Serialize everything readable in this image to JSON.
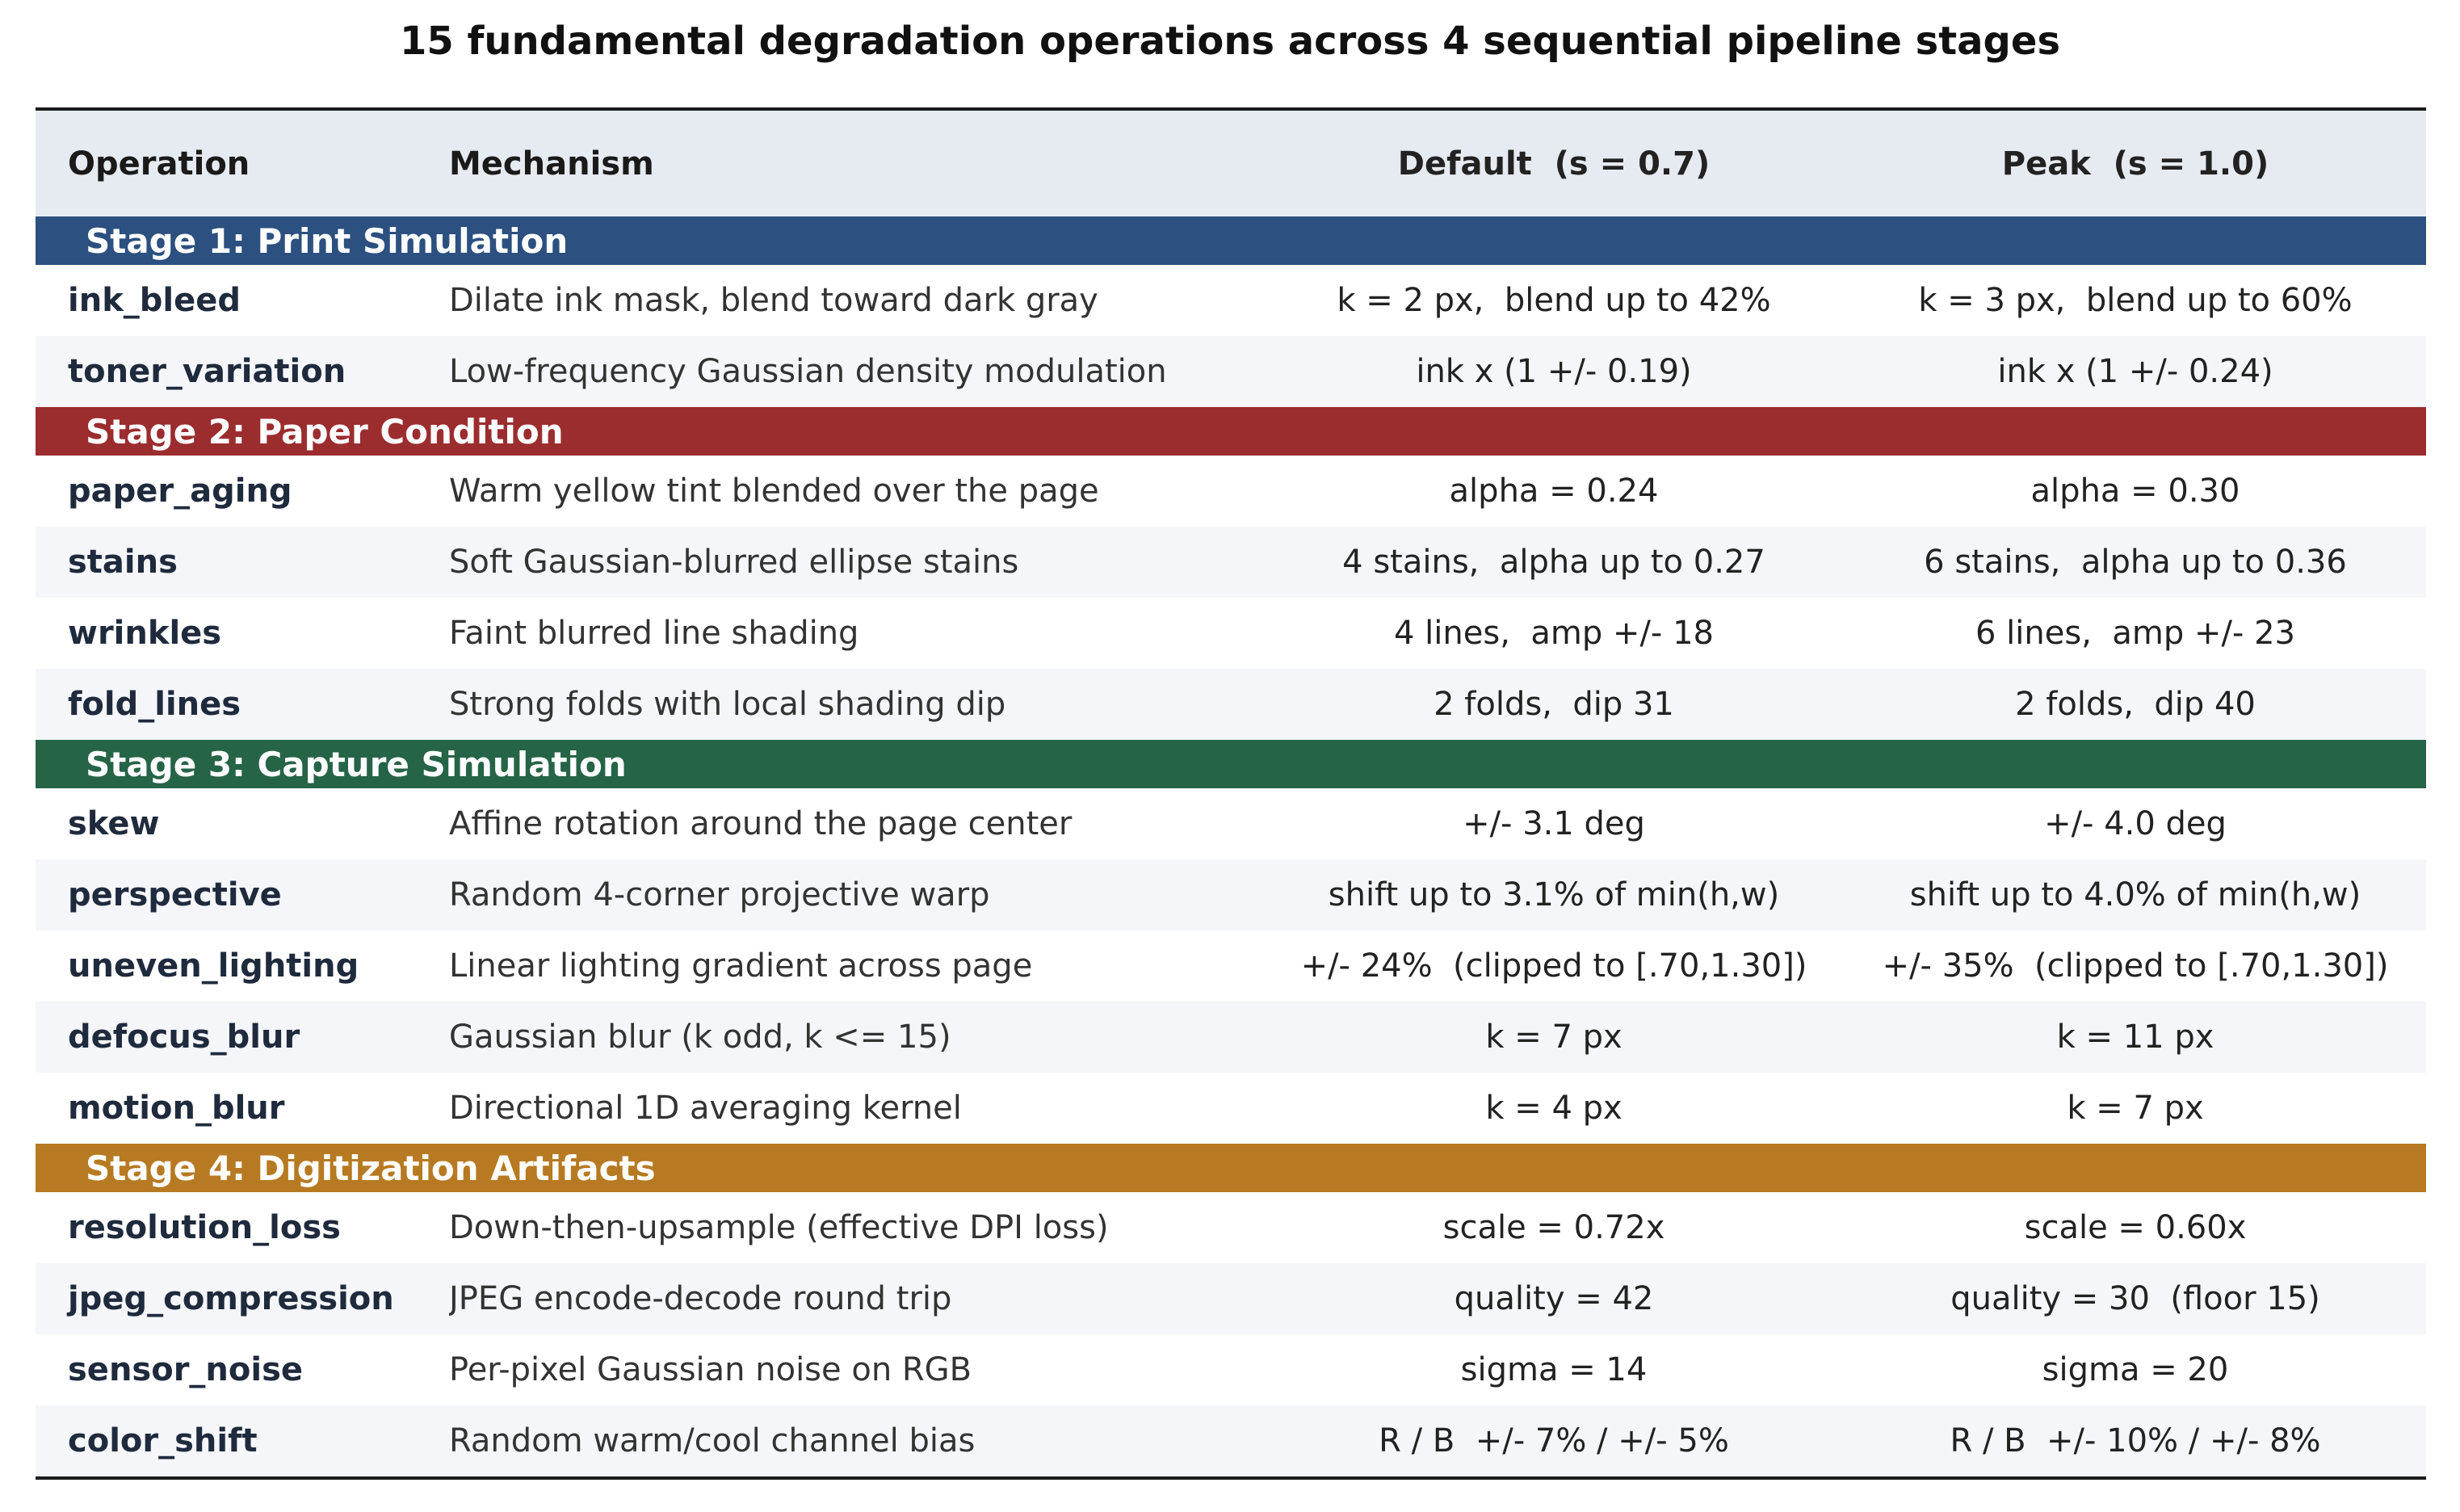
{
  "title": "15 fundamental degradation operations across 4 sequential pipeline stages",
  "columns": {
    "operation": "Operation",
    "mechanism": "Mechanism",
    "default": "Default  (s = 0.7)",
    "peak": "Peak  (s = 1.0)"
  },
  "colors": {
    "stage1": "#2c5080",
    "stage2": "#9b2d2f",
    "stage3": "#266447",
    "stage4": "#b77a22",
    "header_bg": "#e6ebf1"
  },
  "stages": [
    {
      "label": "Stage 1: Print Simulation",
      "rows": [
        {
          "op": "ink_bleed",
          "mech": "Dilate ink mask, blend toward dark gray",
          "def": "k = 2 px,  blend up to 42%",
          "peak": "k = 3 px,  blend up to 60%"
        },
        {
          "op": "toner_variation",
          "mech": "Low-frequency Gaussian density modulation",
          "def": "ink x (1 +/- 0.19)",
          "peak": "ink x (1 +/- 0.24)"
        }
      ]
    },
    {
      "label": "Stage 2: Paper Condition",
      "rows": [
        {
          "op": "paper_aging",
          "mech": "Warm yellow tint blended over the page",
          "def": "alpha = 0.24",
          "peak": "alpha = 0.30"
        },
        {
          "op": "stains",
          "mech": "Soft Gaussian-blurred ellipse stains",
          "def": "4 stains,  alpha up to 0.27",
          "peak": "6 stains,  alpha up to 0.36"
        },
        {
          "op": "wrinkles",
          "mech": "Faint blurred line shading",
          "def": "4 lines,  amp +/- 18",
          "peak": "6 lines,  amp +/- 23"
        },
        {
          "op": "fold_lines",
          "mech": "Strong folds with local shading dip",
          "def": "2 folds,  dip 31",
          "peak": "2 folds,  dip 40"
        }
      ]
    },
    {
      "label": "Stage 3: Capture Simulation",
      "rows": [
        {
          "op": "skew",
          "mech": "Affine rotation around the page center",
          "def": "+/- 3.1 deg",
          "peak": "+/- 4.0 deg"
        },
        {
          "op": "perspective",
          "mech": "Random 4-corner projective warp",
          "def": "shift up to 3.1% of min(h,w)",
          "peak": "shift up to 4.0% of min(h,w)"
        },
        {
          "op": "uneven_lighting",
          "mech": "Linear lighting gradient across page",
          "def": "+/- 24%  (clipped to [.70,1.30])",
          "peak": "+/- 35%  (clipped to [.70,1.30])"
        },
        {
          "op": "defocus_blur",
          "mech": "Gaussian blur (k odd, k <= 15)",
          "def": "k = 7 px",
          "peak": "k = 11 px"
        },
        {
          "op": "motion_blur",
          "mech": "Directional 1D averaging kernel",
          "def": "k = 4 px",
          "peak": "k = 7 px"
        }
      ]
    },
    {
      "label": "Stage 4: Digitization Artifacts",
      "rows": [
        {
          "op": "resolution_loss",
          "mech": "Down-then-upsample (effective DPI loss)",
          "def": "scale = 0.72x",
          "peak": "scale = 0.60x"
        },
        {
          "op": "jpeg_compression",
          "mech": "JPEG encode-decode round trip",
          "def": "quality = 42",
          "peak": "quality = 30  (floor 15)"
        },
        {
          "op": "sensor_noise",
          "mech": "Per-pixel Gaussian noise on RGB",
          "def": "sigma = 14",
          "peak": "sigma = 20"
        },
        {
          "op": "color_shift",
          "mech": "Random warm/cool channel bias",
          "def": "R / B  +/- 7% / +/- 5%",
          "peak": "R / B  +/- 10% / +/- 8%"
        }
      ]
    }
  ]
}
